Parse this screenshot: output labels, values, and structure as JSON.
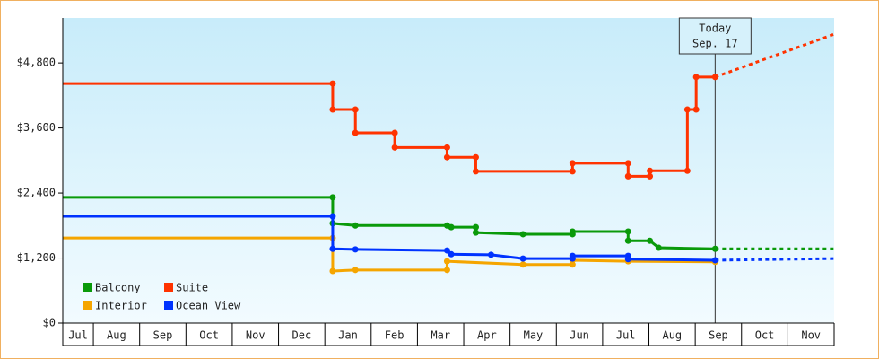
{
  "chart_data": {
    "type": "line",
    "xlim": [
      0.34,
      17
    ],
    "ylim": [
      0,
      5630
    ],
    "xticks": [
      {
        "value": 0.67,
        "label": "Jul"
      },
      {
        "value": 1.5,
        "label": "Aug"
      },
      {
        "value": 2.5,
        "label": "Sep"
      },
      {
        "value": 3.5,
        "label": "Oct"
      },
      {
        "value": 4.5,
        "label": "Nov"
      },
      {
        "value": 5.5,
        "label": "Dec"
      },
      {
        "value": 6.5,
        "label": "Jan"
      },
      {
        "value": 7.5,
        "label": "Feb"
      },
      {
        "value": 8.5,
        "label": "Mar"
      },
      {
        "value": 9.5,
        "label": "Apr"
      },
      {
        "value": 10.5,
        "label": "May"
      },
      {
        "value": 11.5,
        "label": "Jun"
      },
      {
        "value": 12.5,
        "label": "Jul"
      },
      {
        "value": 13.5,
        "label": "Aug"
      },
      {
        "value": 14.5,
        "label": "Sep"
      },
      {
        "value": 15.5,
        "label": "Oct"
      },
      {
        "value": 16.5,
        "label": "Nov"
      }
    ],
    "month_edges": [
      1,
      2,
      3,
      4,
      5,
      6,
      7,
      8,
      9,
      10,
      11,
      12,
      13,
      14,
      15,
      16
    ],
    "yticks": [
      {
        "value": 0,
        "label": "$0"
      },
      {
        "value": 1200,
        "label": "$1,200"
      },
      {
        "value": 2400,
        "label": "$2,400"
      },
      {
        "value": 3600,
        "label": "$3,600"
      },
      {
        "value": 4800,
        "label": "$4,800"
      }
    ],
    "today": {
      "x": 14.43,
      "line1": "Today",
      "line2": "Sep. 17"
    },
    "forecast_x": [
      14.43,
      17
    ],
    "series": [
      {
        "name": "Balcony",
        "color": "#0a9a0a",
        "x": [
          0.34,
          6.17,
          6.17,
          6.66,
          8.64,
          8.73,
          9.26,
          9.26,
          10.28,
          11.35,
          11.35,
          12.55,
          12.55,
          13.02,
          13.21,
          14.43
        ],
        "values": [
          2320,
          2320,
          1840,
          1800,
          1800,
          1770,
          1770,
          1670,
          1640,
          1640,
          1690,
          1690,
          1520,
          1520,
          1390,
          1370
        ],
        "forecast": [
          1370,
          1370
        ]
      },
      {
        "name": "Suite",
        "color": "#ff3300",
        "x": [
          0.34,
          6.17,
          6.17,
          6.66,
          6.66,
          7.51,
          7.51,
          8.64,
          8.64,
          9.26,
          9.26,
          11.35,
          11.35,
          12.55,
          12.55,
          13.02,
          13.02,
          13.83,
          13.83,
          14.02,
          14.02,
          14.43
        ],
        "values": [
          4420,
          4420,
          3940,
          3940,
          3510,
          3510,
          3240,
          3240,
          3060,
          3060,
          2800,
          2800,
          2950,
          2950,
          2710,
          2710,
          2810,
          2810,
          3940,
          3940,
          4540,
          4540
        ],
        "forecast": [
          4540,
          5330
        ]
      },
      {
        "name": "Interior",
        "color": "#f5a500",
        "x": [
          0.34,
          6.17,
          6.17,
          6.66,
          8.64,
          8.64,
          10.28,
          11.35,
          11.35,
          12.55,
          14.43
        ],
        "values": [
          1570,
          1570,
          960,
          980,
          980,
          1140,
          1080,
          1080,
          1160,
          1140,
          1130
        ]
      },
      {
        "name": "Ocean View",
        "color": "#0033ff",
        "x": [
          0.34,
          6.17,
          6.17,
          6.66,
          8.64,
          8.73,
          9.59,
          10.28,
          11.35,
          11.35,
          12.55,
          12.55,
          14.43
        ],
        "values": [
          1970,
          1970,
          1370,
          1360,
          1340,
          1270,
          1260,
          1190,
          1190,
          1240,
          1240,
          1180,
          1160
        ],
        "forecast": [
          1160,
          1190
        ]
      }
    ]
  }
}
